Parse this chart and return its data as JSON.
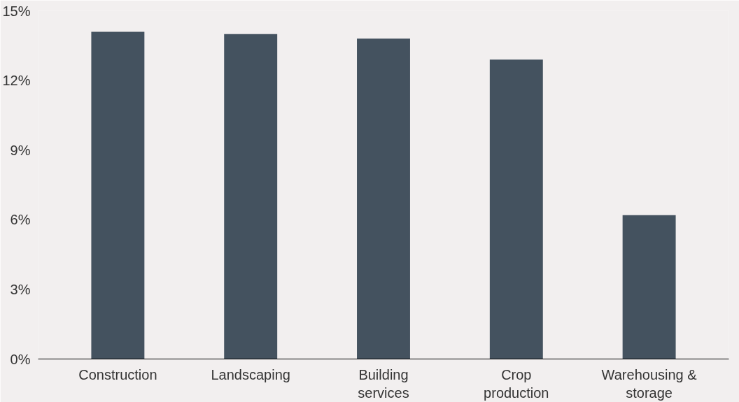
{
  "chart_data": {
    "type": "bar",
    "categories": [
      "Construction",
      "Landscaping",
      "Building services",
      "Crop production",
      "Warehousing & storage"
    ],
    "values": [
      14.1,
      14.0,
      13.8,
      12.9,
      6.2
    ],
    "color": "#44525f",
    "ylim": [
      0,
      15
    ],
    "yticks": [
      {
        "value": 0,
        "label": "0%"
      },
      {
        "value": 3,
        "label": "3%"
      },
      {
        "value": 6,
        "label": "6%"
      },
      {
        "value": 9,
        "label": "9%"
      },
      {
        "value": 12,
        "label": "12%"
      },
      {
        "value": 15,
        "label": "15%"
      }
    ],
    "grid": false
  }
}
